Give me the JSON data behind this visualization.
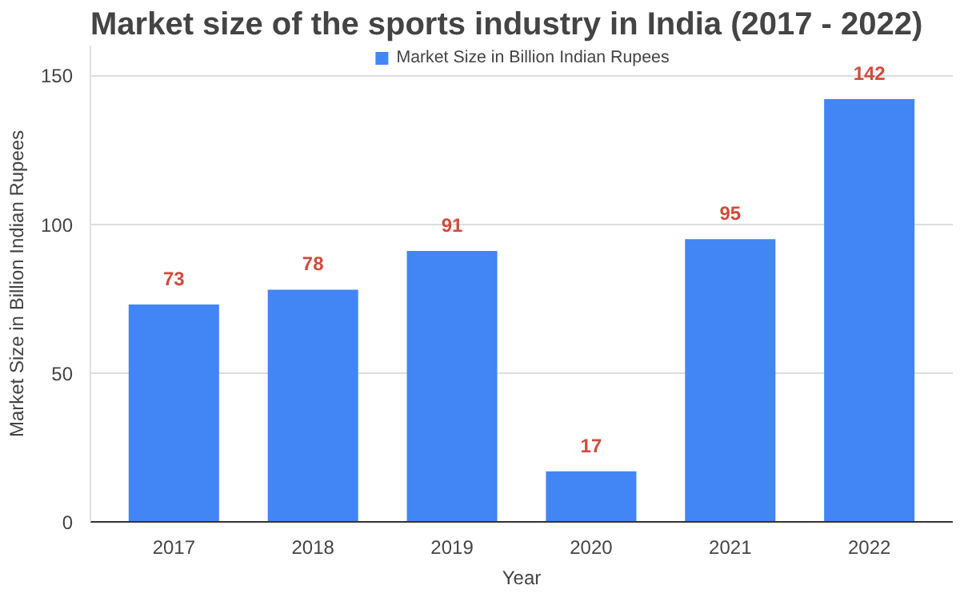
{
  "chart_data": {
    "type": "bar",
    "title": "Market size of the sports industry in India (2017 - 2022)",
    "xlabel": "Year",
    "ylabel": "Market Size in Billion Indian Rupees",
    "categories": [
      "2017",
      "2018",
      "2019",
      "2020",
      "2021",
      "2022"
    ],
    "series": [
      {
        "name": "Market Size in Billion Indian Rupees",
        "color": "#4285f4",
        "values": [
          73,
          78,
          91,
          17,
          95,
          142
        ]
      }
    ],
    "ylim": [
      0,
      160
    ],
    "yticks": [
      0,
      50,
      100,
      150
    ],
    "grid": "y",
    "legend": "top",
    "data_labels": true
  }
}
